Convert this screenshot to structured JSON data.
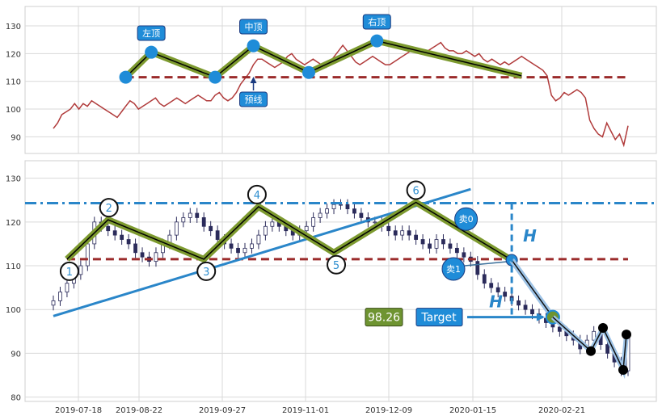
{
  "chart_data": [
    {
      "type": "line",
      "title": "",
      "xlabel": "",
      "ylabel": "",
      "ylim": [
        84,
        137
      ],
      "yticks": [
        90,
        100,
        110,
        120,
        130
      ],
      "grid": true,
      "series": [
        {
          "values": [
            93,
            95,
            98,
            99,
            100,
            102,
            100,
            102,
            101,
            103,
            102,
            101,
            100,
            99,
            98,
            97,
            99,
            101,
            103,
            102,
            100,
            101,
            102,
            103,
            104,
            102,
            101,
            102,
            103,
            104,
            103,
            102,
            103,
            104,
            105,
            104,
            103,
            103,
            105,
            106,
            104,
            103,
            104,
            106,
            109,
            111,
            113,
            116,
            118,
            118,
            117,
            116,
            115,
            116,
            117,
            119,
            120,
            118,
            117,
            116,
            117,
            118,
            117,
            116,
            115,
            117,
            119,
            121,
            123,
            121,
            119,
            117,
            116,
            117,
            118,
            119,
            118,
            117,
            116,
            116,
            117,
            118,
            119,
            120,
            121,
            122,
            121,
            120,
            121,
            122,
            123,
            124,
            122,
            121,
            121,
            120,
            120,
            121,
            120,
            119,
            120,
            118,
            117,
            118,
            117,
            116,
            117,
            116,
            117,
            118,
            119,
            118,
            117,
            116,
            115,
            114,
            112,
            105,
            103,
            104,
            106,
            105,
            106,
            107,
            106,
            104,
            96,
            93,
            91,
            90,
            95,
            92,
            89,
            91,
            87,
            94
          ]
        }
      ],
      "pattern_points": [
        {
          "i": 17,
          "y": 111.5
        },
        {
          "i": 23,
          "y": 120.5
        },
        {
          "i": 38,
          "y": 111.5
        },
        {
          "i": 47,
          "y": 122.8
        },
        {
          "i": 60,
          "y": 113.2
        },
        {
          "i": 76,
          "y": 124.6
        },
        {
          "i": 110,
          "y": 112.0
        }
      ],
      "neckline": 111.5,
      "annotations": {
        "left_shoulder": "左顶",
        "head": "中顶",
        "right_shoulder": "右顶",
        "neckline_label": "预线"
      }
    },
    {
      "type": "candlestick",
      "title": "",
      "xlabel": "",
      "ylabel": "",
      "ylim": [
        79,
        134
      ],
      "yticks": [
        80,
        90,
        100,
        110,
        120,
        130
      ],
      "grid": true,
      "x_dates": [
        "2019-07-18",
        "2019-08-22",
        "2019-09-27",
        "2019-11-01",
        "2019-12-09",
        "2020-01-15",
        "2020-02-21"
      ],
      "closes": [
        102,
        104,
        106,
        108,
        110,
        115,
        120,
        119,
        118,
        117,
        116,
        115,
        113,
        112,
        111,
        113,
        115,
        117,
        120,
        121,
        122,
        121,
        119,
        118,
        116,
        115,
        114,
        113,
        114,
        115,
        117,
        119,
        120,
        119,
        118,
        117,
        118,
        119,
        121,
        122,
        123,
        124,
        124,
        123,
        122,
        121,
        120,
        120,
        119,
        118,
        117,
        118,
        117,
        116,
        115,
        114,
        116,
        115,
        114,
        113,
        112,
        111,
        108,
        106,
        105,
        104,
        103,
        102,
        101,
        100,
        99,
        98,
        97,
        96,
        95,
        94,
        93,
        91,
        93,
        95,
        92,
        90,
        88,
        86,
        94
      ],
      "pattern_points": [
        {
          "n": "1",
          "y": 111.5
        },
        {
          "n": "2",
          "y": 120.5
        },
        {
          "n": "3",
          "y": 111.5
        },
        {
          "n": "4",
          "y": 123.5
        },
        {
          "n": "5",
          "y": 113.0
        },
        {
          "n": "6",
          "y": 124.5
        }
      ],
      "neckline": 111.5,
      "top_line": 124.3,
      "sell0_y": 120.3,
      "sell1_y": 111.3,
      "target_value": 98.26,
      "annotations": {
        "sell0": "卖0",
        "sell1": "卖1",
        "target": "Target",
        "target_value_text": "98.26",
        "h_label": "H"
      }
    }
  ],
  "colors": {
    "price_line": "#b03a3a",
    "neckline": "#9b2b2b",
    "pattern_outer": "#7d9a2f",
    "pattern_inner": "#000000",
    "node_blue": "#1f8cd8",
    "trend_blue": "#2a86c9",
    "badge_bg": "#1f8cd8",
    "target_bg": "#6e9431",
    "grid": "#d9d9d9"
  }
}
